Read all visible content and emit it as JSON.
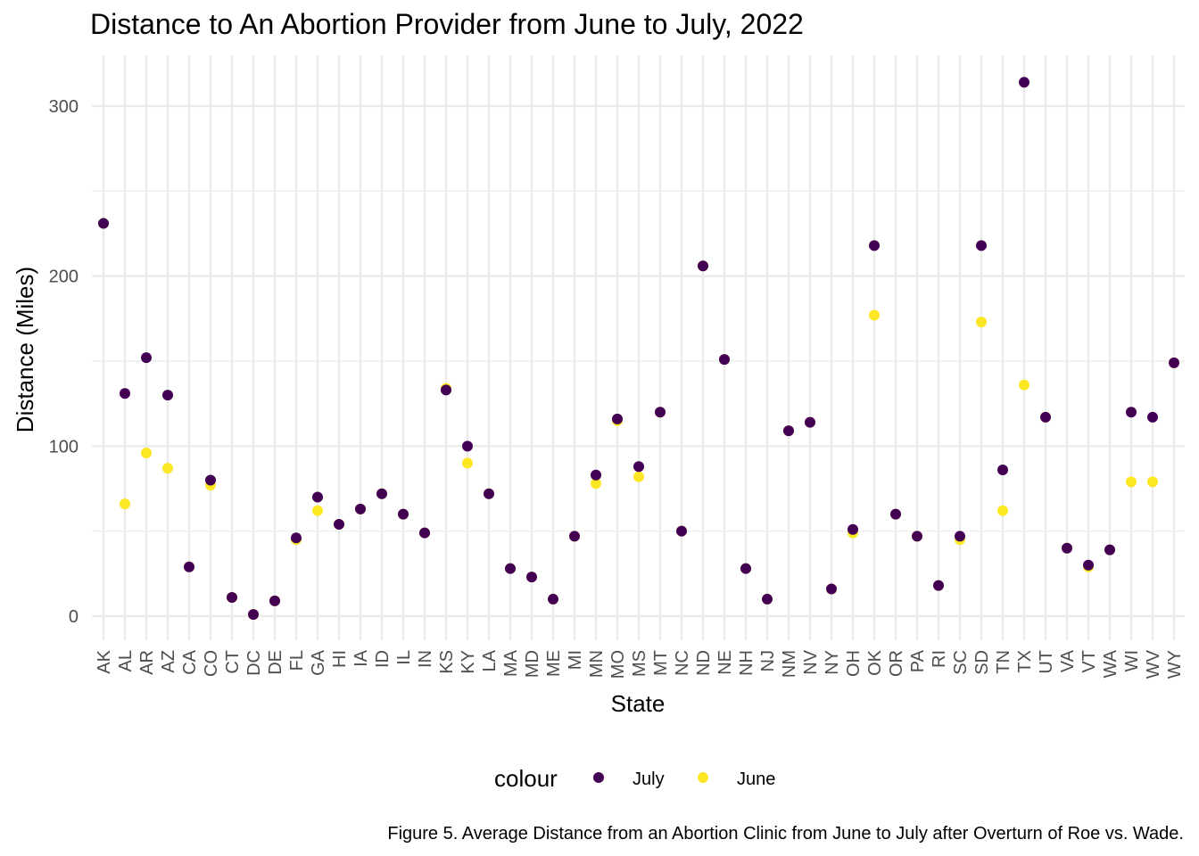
{
  "chart_data": {
    "type": "scatter",
    "title": "Distance to An Abortion Provider from June to July, 2022",
    "xlabel": "State",
    "ylabel": "Distance (Miles)",
    "ylim": [
      -14,
      330
    ],
    "yticks": [
      0,
      100,
      200,
      300
    ],
    "grid": true,
    "legend": {
      "title": "colour",
      "position": "bottom",
      "entries": [
        {
          "name": "July",
          "color": "#440154"
        },
        {
          "name": "June",
          "color": "#FDE725"
        }
      ]
    },
    "caption": "Figure 5. Average Distance from an Abortion Clinic from June to July after Overturn of Roe vs. Wade.",
    "categories": [
      "AK",
      "AL",
      "AR",
      "AZ",
      "CA",
      "CO",
      "CT",
      "DC",
      "DE",
      "FL",
      "GA",
      "HI",
      "IA",
      "ID",
      "IL",
      "IN",
      "KS",
      "KY",
      "LA",
      "MA",
      "MD",
      "ME",
      "MI",
      "MN",
      "MO",
      "MS",
      "MT",
      "NC",
      "ND",
      "NE",
      "NH",
      "NJ",
      "NM",
      "NV",
      "NY",
      "OH",
      "OK",
      "OR",
      "PA",
      "RI",
      "SC",
      "SD",
      "TN",
      "TX",
      "UT",
      "VA",
      "VT",
      "WA",
      "WI",
      "WV",
      "WY"
    ],
    "series": [
      {
        "name": "June",
        "color": "#FDE725",
        "values": [
          231,
          66,
          96,
          87,
          29,
          77,
          11,
          1,
          9,
          45,
          62,
          54,
          63,
          72,
          60,
          49,
          134,
          90,
          72,
          28,
          23,
          10,
          47,
          78,
          115,
          82,
          120,
          50,
          206,
          151,
          28,
          10,
          109,
          114,
          16,
          49,
          177,
          60,
          47,
          18,
          45,
          173,
          62,
          136,
          117,
          40,
          29,
          39,
          79,
          79,
          149
        ]
      },
      {
        "name": "July",
        "color": "#440154",
        "values": [
          231,
          131,
          152,
          130,
          29,
          80,
          11,
          1,
          9,
          46,
          70,
          54,
          63,
          72,
          60,
          49,
          133,
          100,
          72,
          28,
          23,
          10,
          47,
          83,
          116,
          88,
          120,
          50,
          206,
          151,
          28,
          10,
          109,
          114,
          16,
          51,
          218,
          60,
          47,
          18,
          47,
          218,
          86,
          314,
          117,
          40,
          30,
          39,
          120,
          117,
          149
        ]
      }
    ]
  }
}
